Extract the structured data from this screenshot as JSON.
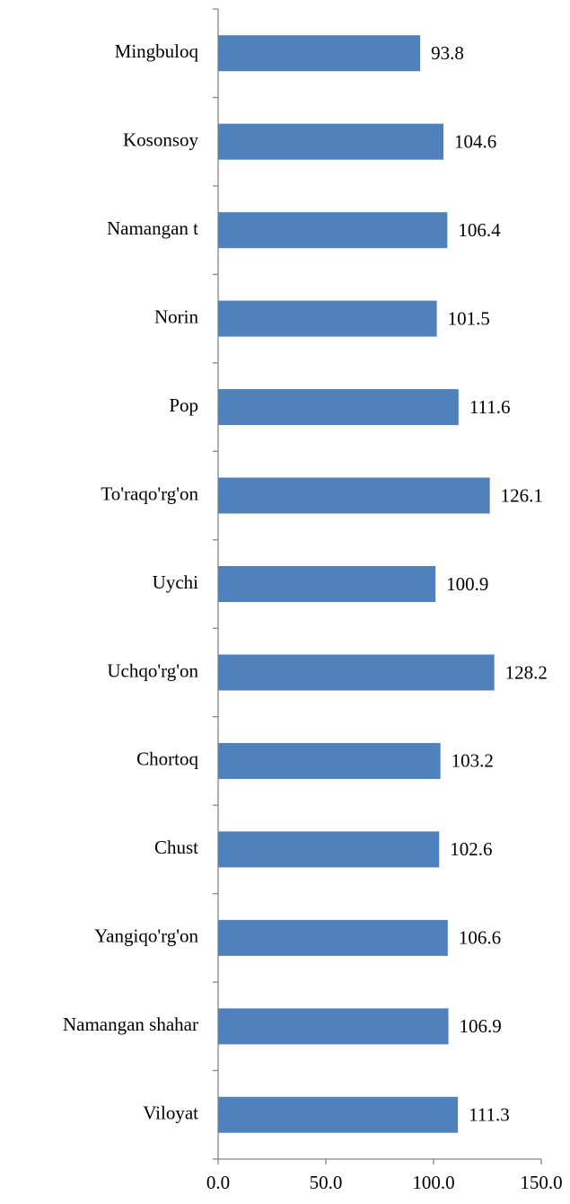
{
  "chart_data": {
    "type": "bar",
    "orientation": "horizontal",
    "categories": [
      "Mingbuloq",
      "Kosonsoy",
      "Namangan t",
      "Norin",
      "Pop",
      "To'raqo'rg'on",
      "Uychi",
      "Uchqo'rg'on",
      "Chortoq",
      "Chust",
      "Yangiqo'rg'on",
      "Namangan shahar",
      "Viloyat"
    ],
    "values": [
      93.8,
      104.6,
      106.4,
      101.5,
      111.6,
      126.1,
      100.9,
      128.2,
      103.2,
      102.6,
      106.6,
      106.9,
      111.3
    ],
    "color": "#4f81bd",
    "xlim": [
      0,
      150
    ],
    "xticks": [
      {
        "value": 0,
        "label": "0.0"
      },
      {
        "value": 50,
        "label": "50.0"
      },
      {
        "value": 100,
        "label": "100.0"
      },
      {
        "value": 150,
        "label": "150.0"
      }
    ],
    "grid": false
  }
}
